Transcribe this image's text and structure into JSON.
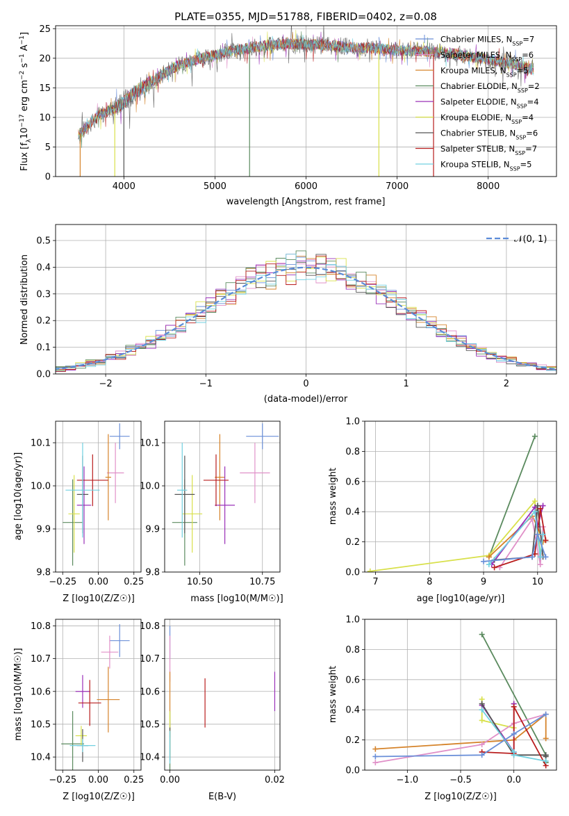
{
  "chart_data": [
    {
      "type": "line",
      "title": "PLATE=0355, MJD=51788, FIBERID=0402, z=0.08",
      "xlabel": "wavelength [Angstrom, rest frame]",
      "ylabel_parts": [
        "Flux [f",
        "λ",
        "10",
        "−17",
        " erg cm",
        "−2",
        " s",
        "−1",
        " A",
        "−1",
        "]"
      ],
      "xlim": [
        3250,
        8750
      ],
      "ylim": [
        0,
        25.5
      ],
      "xticks": [
        4000,
        5000,
        6000,
        7000,
        8000
      ],
      "yticks": [
        0,
        5,
        10,
        15,
        20,
        25
      ],
      "grid": true,
      "legend_position": "right",
      "series": [
        {
          "label": "Chabrier MILES, N",
          "n": "7",
          "color": "#6a8fd8"
        },
        {
          "label": "Salpeter MILES, N",
          "n": "6",
          "color": "#e090c8"
        },
        {
          "label": "Kroupa MILES, N",
          "n": "5",
          "color": "#d5832a"
        },
        {
          "label": "Chabrier ELODIE, N",
          "n": "2",
          "color": "#5a8a5e"
        },
        {
          "label": "Salpeter ELODIE, N",
          "n": "4",
          "color": "#9a30b8"
        },
        {
          "label": "Kroupa ELODIE, N",
          "n": "4",
          "color": "#d8e04a"
        },
        {
          "label": "Chabrier STELIB, N",
          "n": "6",
          "color": "#555555"
        },
        {
          "label": "Salpeter STELIB, N",
          "n": "7",
          "color": "#b81c1c"
        },
        {
          "label": "Kroupa STELIB, N",
          "n": "5",
          "color": "#70d0e0"
        }
      ],
      "subscript_label": "SSP",
      "continuum": [
        [
          3500,
          7
        ],
        [
          3600,
          8.5
        ],
        [
          3700,
          10
        ],
        [
          3800,
          11
        ],
        [
          3900,
          11.5
        ],
        [
          4000,
          12.5
        ],
        [
          4100,
          14
        ],
        [
          4200,
          15
        ],
        [
          4300,
          16
        ],
        [
          4400,
          17
        ],
        [
          4500,
          18
        ],
        [
          4600,
          18.8
        ],
        [
          4700,
          19.3
        ],
        [
          4800,
          19.8
        ],
        [
          4900,
          20.2
        ],
        [
          5000,
          20.5
        ],
        [
          5100,
          21
        ],
        [
          5200,
          21.3
        ],
        [
          5300,
          21.5
        ],
        [
          5400,
          21.8
        ],
        [
          5500,
          22
        ],
        [
          5600,
          22.2
        ],
        [
          5700,
          22.3
        ],
        [
          5800,
          22.5
        ],
        [
          5900,
          22.4
        ],
        [
          6000,
          22.3
        ],
        [
          6100,
          22.3
        ],
        [
          6200,
          22.2
        ],
        [
          6300,
          22.1
        ],
        [
          6400,
          22
        ],
        [
          6500,
          21.8
        ],
        [
          6600,
          21.7
        ],
        [
          6700,
          21.8
        ],
        [
          6800,
          21.6
        ],
        [
          6900,
          21.5
        ],
        [
          7000,
          21.3
        ],
        [
          7100,
          21.2
        ],
        [
          7200,
          21.3
        ],
        [
          7300,
          21.2
        ],
        [
          7400,
          21
        ],
        [
          7500,
          21
        ],
        [
          7600,
          20.8
        ],
        [
          7700,
          20.5
        ],
        [
          7800,
          20.3
        ],
        [
          7900,
          20
        ],
        [
          8000,
          19.8
        ],
        [
          8100,
          19.5
        ],
        [
          8200,
          19.2
        ],
        [
          8300,
          19
        ],
        [
          8400,
          18.5
        ],
        [
          8500,
          18.2
        ]
      ],
      "drops": [
        {
          "x": 3520,
          "color": "#d5832a"
        },
        {
          "x": 3900,
          "color": "#d8e04a"
        },
        {
          "x": 4000,
          "color": "#555555"
        },
        {
          "x": 5380,
          "color": "#5a8a5e"
        },
        {
          "x": 6800,
          "color": "#d8e04a"
        },
        {
          "x": 7400,
          "color": "#b81c1c"
        }
      ]
    },
    {
      "type": "bar",
      "ylabel": "Normed distribution",
      "xlabel": "(data-model)/error",
      "xlim": [
        -2.5,
        2.5
      ],
      "ylim": [
        0,
        0.56
      ],
      "xticks": [
        -2,
        -1,
        0,
        1,
        2
      ],
      "xtick_labels": [
        "−2",
        "−1",
        "0",
        "1",
        "2"
      ],
      "yticks": [
        0.0,
        0.1,
        0.2,
        0.3,
        0.4,
        0.5
      ],
      "ytick_labels": [
        "0.0",
        "0.1",
        "0.2",
        "0.3",
        "0.4",
        "0.5"
      ],
      "grid": true,
      "legend_label": "𝒩(0, 1)",
      "legend_position": "top-right",
      "normal_color": "#5b8bd8",
      "hist_colors": [
        "#6a8fd8",
        "#e090c8",
        "#d5832a",
        "#5a8a5e",
        "#9a30b8",
        "#d8e04a",
        "#555555",
        "#b81c1c",
        "#70d0e0"
      ],
      "bin_width": 0.1
    },
    {
      "type": "scatter",
      "xlabel": "Z [log10(Z/Z☉)]",
      "ylabel": "age  [log10(age/yr)]",
      "xlim": [
        -0.3,
        0.3
      ],
      "ylim": [
        9.8,
        10.15
      ],
      "xticks": [
        -0.25,
        0.0,
        0.25
      ],
      "xtick_labels": [
        "−0.25",
        "0.00",
        "0.25"
      ],
      "yticks": [
        9.8,
        9.9,
        10.0,
        10.1
      ],
      "ytick_labels": [
        "9.8",
        "9.9",
        "10.0",
        "10.1"
      ],
      "points": [
        {
          "color": "#6a8fd8",
          "x": 0.15,
          "xe": 0.07,
          "y": 10.115,
          "ye": 0.03
        },
        {
          "color": "#e090c8",
          "x": 0.12,
          "xe": 0.06,
          "y": 10.03,
          "ye": 0.07
        },
        {
          "color": "#d5832a",
          "x": 0.07,
          "xe": 0.02,
          "y": 10.02,
          "ye": 0.1
        },
        {
          "color": "#5a8a5e",
          "x": -0.18,
          "xe": 0.07,
          "y": 9.915,
          "ye": 0.1
        },
        {
          "color": "#9a30b8",
          "x": -0.1,
          "xe": 0.05,
          "y": 9.955,
          "ye": 0.09
        },
        {
          "color": "#d8e04a",
          "x": -0.17,
          "xe": 0.04,
          "y": 9.935,
          "ye": 0.09
        },
        {
          "color": "#555555",
          "x": -0.11,
          "xe": 0.04,
          "y": 9.98,
          "ye": 0.09
        },
        {
          "color": "#b81c1c",
          "x": -0.04,
          "xe": 0.11,
          "y": 10.013,
          "ye": 0.06
        },
        {
          "color": "#70d0e0",
          "x": -0.11,
          "xe": 0.12,
          "y": 9.99,
          "ye": 0.11
        }
      ]
    },
    {
      "type": "scatter",
      "xlabel": "mass [log10(M/M☉)]",
      "ylabel": "",
      "xlim": [
        10.36,
        10.82
      ],
      "ylim": [
        9.8,
        10.15
      ],
      "xticks": [
        10.5,
        10.75
      ],
      "xtick_labels": [
        "10.50",
        "10.75"
      ],
      "yticks": [
        9.8,
        9.9,
        10.0,
        10.1
      ],
      "ytick_labels": [
        "9.8",
        "9.9",
        "10.0",
        "10.1"
      ],
      "points": [
        {
          "color": "#6a8fd8",
          "x": 10.75,
          "xe": 0.065,
          "y": 10.115,
          "ye": 0.03
        },
        {
          "color": "#e090c8",
          "x": 10.72,
          "xe": 0.06,
          "y": 10.03,
          "ye": 0.07
        },
        {
          "color": "#d5832a",
          "x": 10.58,
          "xe": 0.02,
          "y": 10.02,
          "ye": 0.1
        },
        {
          "color": "#5a8a5e",
          "x": 10.44,
          "xe": 0.05,
          "y": 9.915,
          "ye": 0.1
        },
        {
          "color": "#9a30b8",
          "x": 10.6,
          "xe": 0.04,
          "y": 9.955,
          "ye": 0.09
        },
        {
          "color": "#d8e04a",
          "x": 10.47,
          "xe": 0.04,
          "y": 9.935,
          "ye": 0.09
        },
        {
          "color": "#555555",
          "x": 10.44,
          "xe": 0.04,
          "y": 9.98,
          "ye": 0.09
        },
        {
          "color": "#b81c1c",
          "x": 10.565,
          "xe": 0.05,
          "y": 10.013,
          "ye": 0.06
        },
        {
          "color": "#70d0e0",
          "x": 10.43,
          "xe": 0.02,
          "y": 9.99,
          "ye": 0.11
        }
      ]
    },
    {
      "type": "line",
      "xlabel": "age  [log10(age/yr)]",
      "ylabel": "mass weight",
      "xlim": [
        6.8,
        10.35
      ],
      "ylim": [
        0,
        1.0
      ],
      "xticks": [
        7,
        8,
        9,
        10
      ],
      "xtick_labels": [
        "7",
        "8",
        "9",
        "10"
      ],
      "yticks": [
        0.0,
        0.2,
        0.4,
        0.6,
        0.8,
        1.0
      ],
      "ytick_labels": [
        "0.0",
        "0.2",
        "0.4",
        "0.6",
        "0.8",
        "1.0"
      ],
      "series": [
        {
          "color": "#5a8a5e",
          "x": [
            9.1,
            9.95
          ],
          "y": [
            0.1,
            0.9
          ]
        },
        {
          "color": "#d8e04a",
          "x": [
            6.9,
            9.1,
            9.95,
            10.05
          ],
          "y": [
            0.005,
            0.11,
            0.47,
            0.12
          ]
        },
        {
          "color": "#d5832a",
          "x": [
            9.1,
            9.9,
            10.0,
            10.1
          ],
          "y": [
            0.1,
            0.37,
            0.3,
            0.2
          ]
        },
        {
          "color": "#9a30b8",
          "x": [
            9.15,
            9.95,
            10.0,
            10.1
          ],
          "y": [
            0.05,
            0.43,
            0.3,
            0.44
          ]
        },
        {
          "color": "#e090c8",
          "x": [
            9.3,
            9.9,
            10.05,
            10.1
          ],
          "y": [
            0.03,
            0.35,
            0.05,
            0.3
          ]
        },
        {
          "color": "#555555",
          "x": [
            9.2,
            9.9,
            10.0,
            10.1
          ],
          "y": [
            0.08,
            0.1,
            0.44,
            0.1
          ]
        },
        {
          "color": "#b81c1c",
          "x": [
            9.2,
            9.95,
            10.05,
            10.15
          ],
          "y": [
            0.03,
            0.12,
            0.42,
            0.21
          ]
        },
        {
          "color": "#70d0e0",
          "x": [
            9.1,
            9.95,
            10.05,
            10.1
          ],
          "y": [
            0.05,
            0.4,
            0.1,
            0.25
          ]
        },
        {
          "color": "#6a8fd8",
          "x": [
            9.0,
            9.9,
            10.0,
            10.15
          ],
          "y": [
            0.07,
            0.1,
            0.25,
            0.1
          ]
        }
      ]
    },
    {
      "type": "scatter",
      "xlabel": "Z [log10(Z/Z☉)]",
      "ylabel": "mass [log10(M/M☉)]",
      "xlim": [
        -0.3,
        0.3
      ],
      "ylim": [
        10.36,
        10.82
      ],
      "xticks": [
        -0.25,
        0.0,
        0.25
      ],
      "xtick_labels": [
        "−0.25",
        "0.00",
        "0.25"
      ],
      "yticks": [
        10.4,
        10.5,
        10.6,
        10.7,
        10.8
      ],
      "ytick_labels": [
        "10.4",
        "10.5",
        "10.6",
        "10.7",
        "10.8"
      ],
      "points": [
        {
          "color": "#6a8fd8",
          "x": 0.15,
          "xe": 0.07,
          "y": 10.755,
          "ye": 0.05
        },
        {
          "color": "#e090c8",
          "x": 0.08,
          "xe": 0.06,
          "y": 10.72,
          "ye": 0.05
        },
        {
          "color": "#d5832a",
          "x": 0.07,
          "xe": 0.08,
          "y": 10.575,
          "ye": 0.1
        },
        {
          "color": "#5a8a5e",
          "x": -0.18,
          "xe": 0.08,
          "y": 10.44,
          "ye": 0.1
        },
        {
          "color": "#9a30b8",
          "x": -0.11,
          "xe": 0.05,
          "y": 10.6,
          "ye": 0.05
        },
        {
          "color": "#d8e04a",
          "x": -0.12,
          "xe": 0.04,
          "y": 10.465,
          "ye": 0.03
        },
        {
          "color": "#555555",
          "x": -0.11,
          "xe": 0.04,
          "y": 10.435,
          "ye": 0.05
        },
        {
          "color": "#b81c1c",
          "x": -0.06,
          "xe": 0.08,
          "y": 10.565,
          "ye": 0.07
        },
        {
          "color": "#70d0e0",
          "x": -0.11,
          "xe": 0.09,
          "y": 10.435,
          "ye": 0.02
        }
      ]
    },
    {
      "type": "scatter",
      "xlabel": "E(B-V)",
      "ylabel": "",
      "xlim": [
        -0.001,
        0.021
      ],
      "ylim": [
        10.36,
        10.82
      ],
      "xticks": [
        0.0,
        0.02
      ],
      "xtick_labels": [
        "0.00",
        "0.02"
      ],
      "yticks": [
        10.4,
        10.5,
        10.6,
        10.7,
        10.8
      ],
      "ytick_labels": [
        "10.4",
        "10.5",
        "10.6",
        "10.7",
        "10.8"
      ],
      "points": [
        {
          "color": "#6a8fd8",
          "x": 0.0,
          "xe": 0,
          "y": 10.75,
          "ye": 0.05
        },
        {
          "color": "#e090c8",
          "x": 0.0,
          "xe": 0,
          "y": 10.7,
          "ye": 0.07
        },
        {
          "color": "#d5832a",
          "x": 0.0,
          "xe": 0,
          "y": 10.56,
          "ye": 0.1
        },
        {
          "color": "#5a8a5e",
          "x": 0.0,
          "xe": 0,
          "y": 10.44,
          "ye": 0.1
        },
        {
          "color": "#9a30b8",
          "x": 0.02,
          "xe": 0,
          "y": 10.6,
          "ye": 0.06
        },
        {
          "color": "#d8e04a",
          "x": 0.0,
          "xe": 0,
          "y": 10.47,
          "ye": 0.07
        },
        {
          "color": "#555555",
          "x": 0.0,
          "xe": 0,
          "y": 10.44,
          "ye": 0.05
        },
        {
          "color": "#b81c1c",
          "x": 0.0067,
          "xe": 0,
          "y": 10.565,
          "ye": 0.075
        },
        {
          "color": "#70d0e0",
          "x": 0.0,
          "xe": 0,
          "y": 10.43,
          "ye": 0.05
        }
      ]
    },
    {
      "type": "line",
      "xlabel": "Z [log10(Z/Z☉)]",
      "ylabel": "mass weight",
      "xlim": [
        -1.4,
        0.4
      ],
      "ylim": [
        0,
        1.0
      ],
      "xticks": [
        -1.0,
        -0.5,
        0.0
      ],
      "xtick_labels": [
        "−1.0",
        "−0.5",
        "0.0"
      ],
      "yticks": [
        0.0,
        0.2,
        0.4,
        0.6,
        0.8,
        1.0
      ],
      "ytick_labels": [
        "0.0",
        "0.2",
        "0.4",
        "0.6",
        "0.8",
        "1.0"
      ],
      "series": [
        {
          "color": "#5a8a5e",
          "x": [
            -0.3,
            0.3,
            0.3
          ],
          "y": [
            0.9,
            0.1,
            0.05
          ]
        },
        {
          "color": "#d8e04a",
          "x": [
            -0.3,
            -0.3,
            0.0,
            0.0
          ],
          "y": [
            0.47,
            0.33,
            0.28,
            0.44
          ]
        },
        {
          "color": "#d5832a",
          "x": [
            -1.3,
            0.0,
            0.3,
            0.3
          ],
          "y": [
            0.14,
            0.2,
            0.37,
            0.21
          ]
        },
        {
          "color": "#9a30b8",
          "x": [
            -0.3,
            0.0,
            0.0
          ],
          "y": [
            0.43,
            0.12,
            0.44
          ]
        },
        {
          "color": "#e090c8",
          "x": [
            -1.3,
            -0.3,
            0.0,
            0.3
          ],
          "y": [
            0.05,
            0.17,
            0.31,
            0.37
          ]
        },
        {
          "color": "#555555",
          "x": [
            -0.3,
            0.0,
            0.3,
            0.3
          ],
          "y": [
            0.44,
            0.1,
            0.1,
            0.09
          ]
        },
        {
          "color": "#b81c1c",
          "x": [
            -0.3,
            0.0,
            0.0,
            0.3
          ],
          "y": [
            0.12,
            0.11,
            0.42,
            0.03
          ]
        },
        {
          "color": "#70d0e0",
          "x": [
            -0.3,
            0.0,
            0.0,
            0.3
          ],
          "y": [
            0.4,
            0.12,
            0.1,
            0.06
          ]
        },
        {
          "color": "#6a8fd8",
          "x": [
            -1.3,
            -0.3,
            0.0,
            0.3
          ],
          "y": [
            0.09,
            0.1,
            0.24,
            0.37
          ]
        }
      ]
    }
  ]
}
